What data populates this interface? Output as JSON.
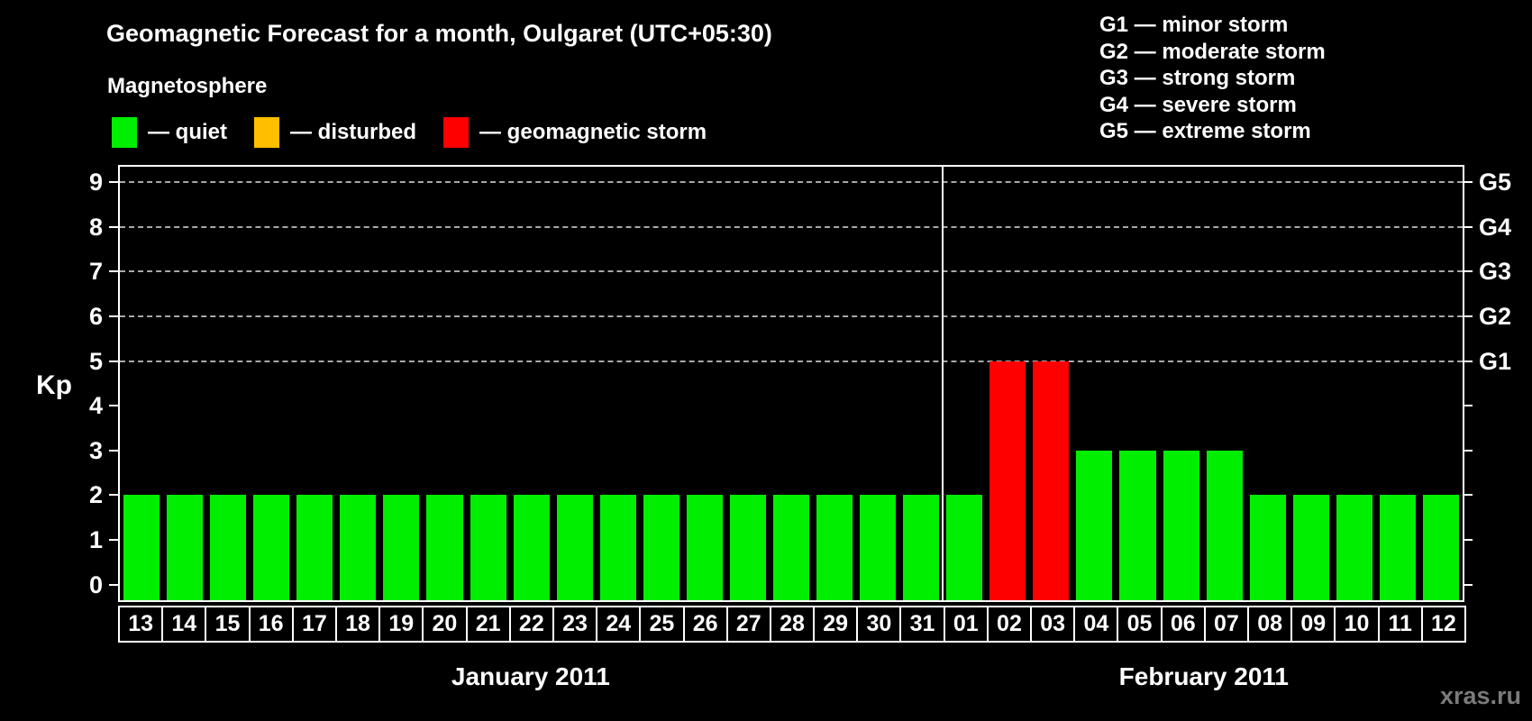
{
  "title": "Geomagnetic Forecast for a month, Oulgaret (UTC+05:30)",
  "legend": {
    "heading": "Magnetosphere",
    "items": [
      {
        "key": "quiet",
        "label": "— quiet",
        "color": "#00ee00"
      },
      {
        "key": "disturbed",
        "label": "— disturbed",
        "color": "#ffbe00"
      },
      {
        "key": "storm",
        "label": "— geomagnetic storm",
        "color": "#ff0000"
      }
    ]
  },
  "g_legend": [
    "G1 — minor storm",
    "G2 — moderate storm",
    "G3 — strong storm",
    "G4 — severe storm",
    "G5 — extreme storm"
  ],
  "watermark": "xras.ru",
  "chart_data": {
    "type": "bar",
    "title": "Geomagnetic Forecast for a month, Oulgaret (UTC+05:30)",
    "ylabel": "Kp",
    "ylim": [
      -0.4,
      9.4
    ],
    "yticks": [
      0,
      1,
      2,
      3,
      4,
      5,
      6,
      7,
      8,
      9
    ],
    "grid": true,
    "gridlines_at_kp": [
      5,
      6,
      7,
      8,
      9
    ],
    "right_axis": [
      {
        "kp": 5,
        "label": "G1"
      },
      {
        "kp": 6,
        "label": "G2"
      },
      {
        "kp": 7,
        "label": "G3"
      },
      {
        "kp": 8,
        "label": "G4"
      },
      {
        "kp": 9,
        "label": "G5"
      }
    ],
    "state_colors": {
      "quiet": "#00ee00",
      "disturbed": "#ffbe00",
      "storm": "#ff0000"
    },
    "months": [
      {
        "label": "January 2011",
        "day_count": 19
      },
      {
        "label": "February 2011",
        "day_count": 12
      }
    ],
    "categories": [
      "13",
      "14",
      "15",
      "16",
      "17",
      "18",
      "19",
      "20",
      "21",
      "22",
      "23",
      "24",
      "25",
      "26",
      "27",
      "28",
      "29",
      "30",
      "31",
      "01",
      "02",
      "03",
      "04",
      "05",
      "06",
      "07",
      "08",
      "09",
      "10",
      "11",
      "12"
    ],
    "values": [
      2,
      2,
      2,
      2,
      2,
      2,
      2,
      2,
      2,
      2,
      2,
      2,
      2,
      2,
      2,
      2,
      2,
      2,
      2,
      2,
      5,
      5,
      3,
      3,
      3,
      3,
      2,
      2,
      2,
      2,
      2
    ],
    "bar_states": [
      "quiet",
      "quiet",
      "quiet",
      "quiet",
      "quiet",
      "quiet",
      "quiet",
      "quiet",
      "quiet",
      "quiet",
      "quiet",
      "quiet",
      "quiet",
      "quiet",
      "quiet",
      "quiet",
      "quiet",
      "quiet",
      "quiet",
      "quiet",
      "storm",
      "storm",
      "quiet",
      "quiet",
      "quiet",
      "quiet",
      "quiet",
      "quiet",
      "quiet",
      "quiet",
      "quiet"
    ]
  }
}
